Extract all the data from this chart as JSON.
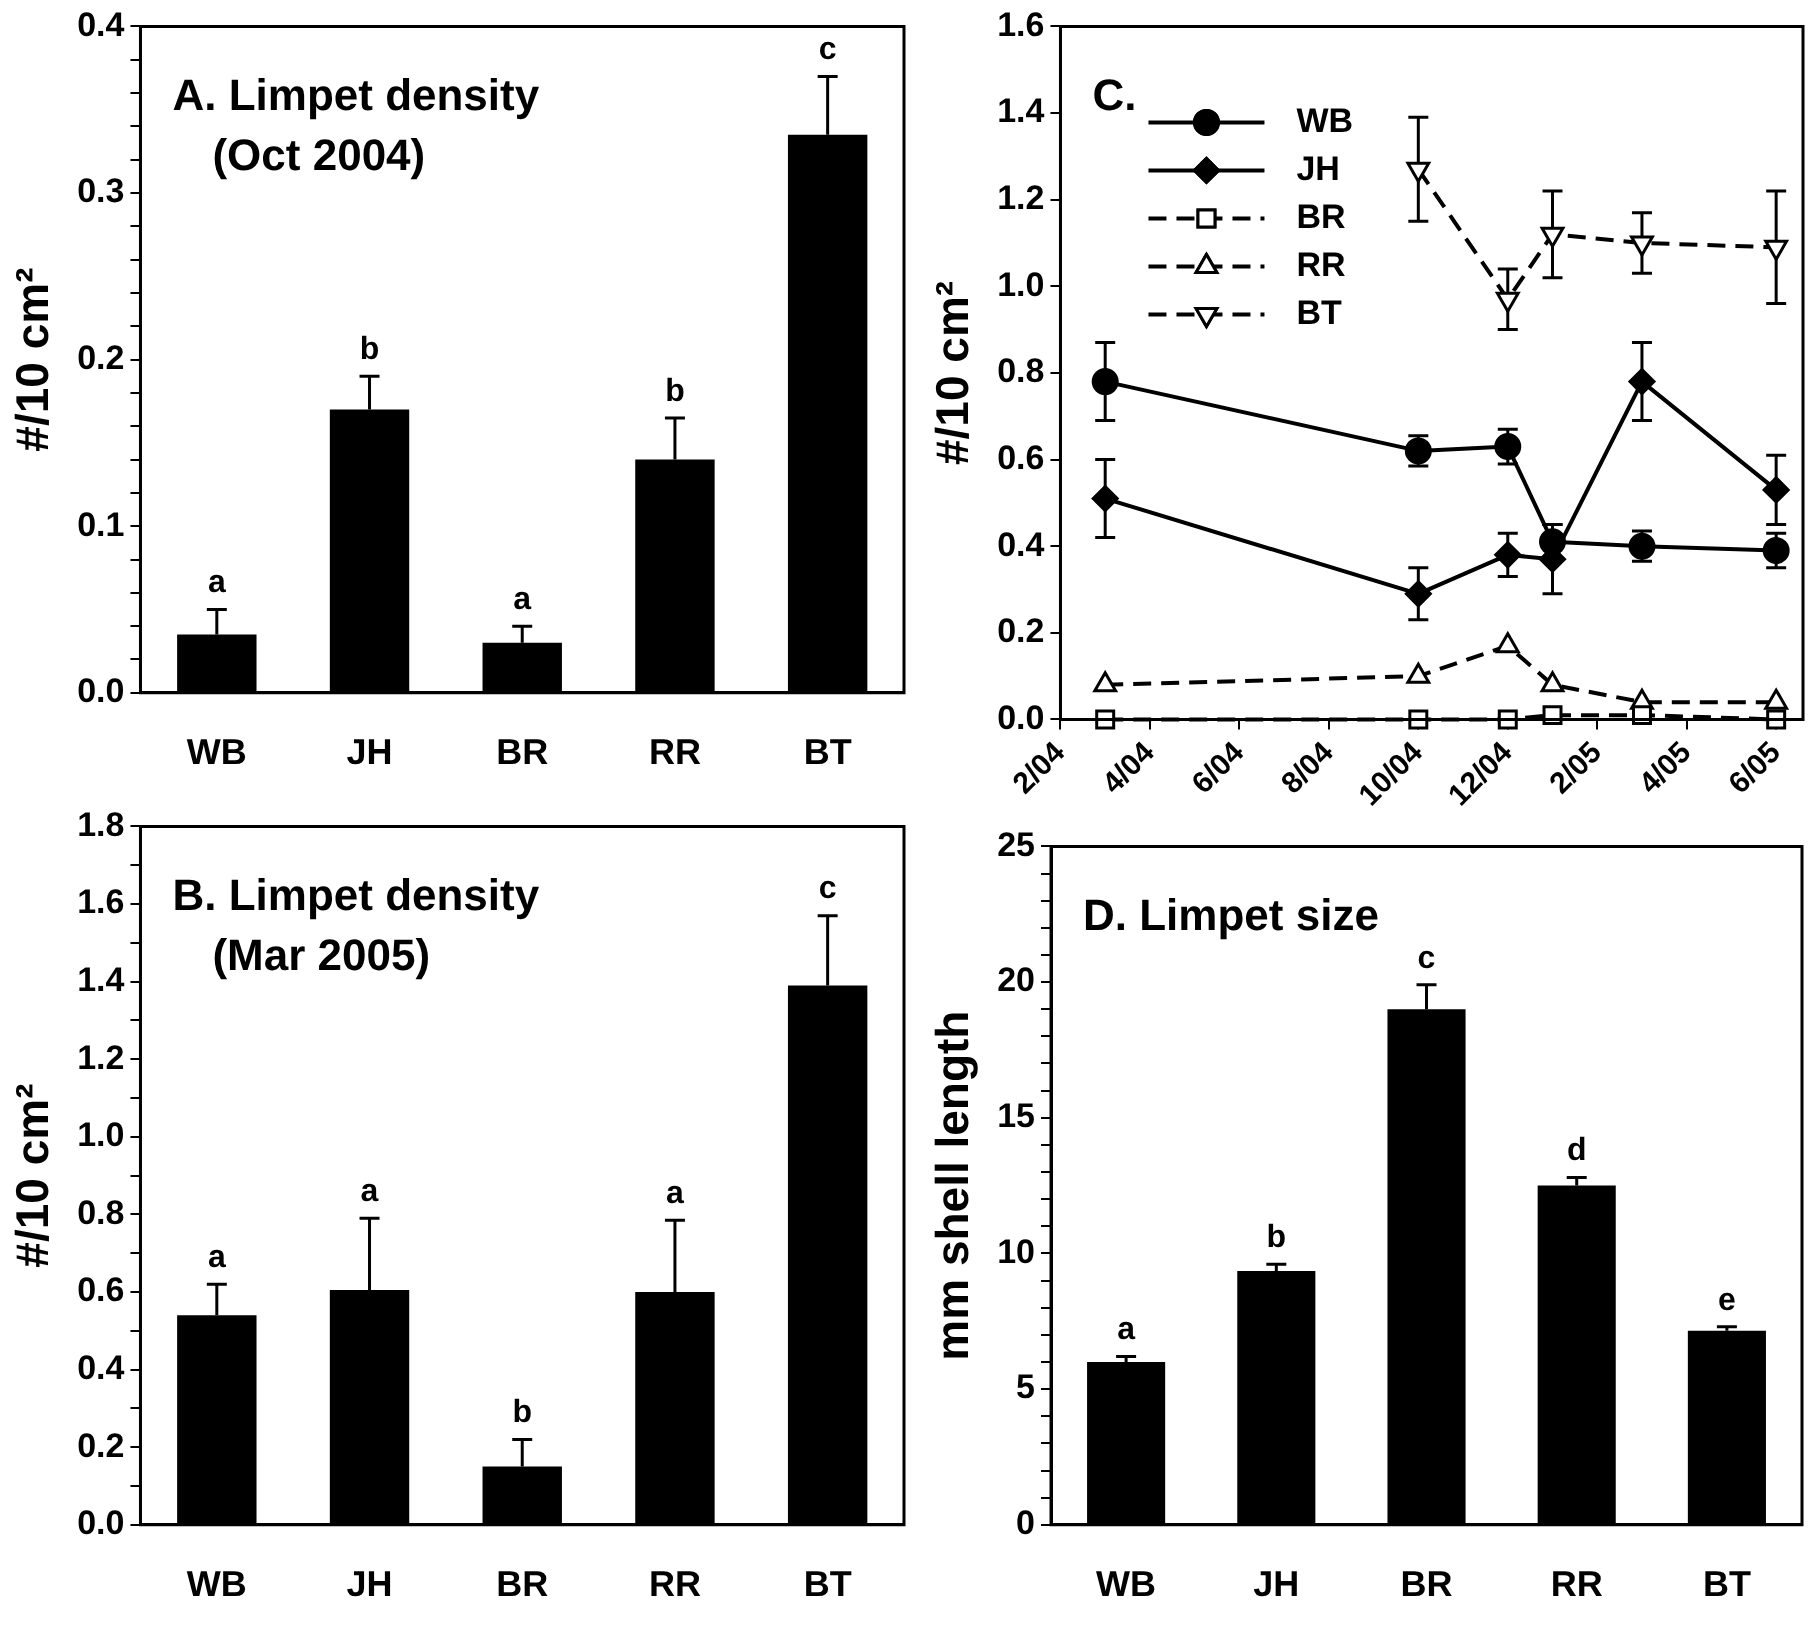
{
  "chart_data": [
    {
      "type": "bar",
      "title": "A. Limpet density",
      "subtitle": "(Oct 2004)",
      "ylabel": "#/10 cm²",
      "categories": [
        "WB",
        "JH",
        "BR",
        "RR",
        "BT"
      ],
      "color": "#000000",
      "values": [
        0.035,
        0.17,
        0.03,
        0.14,
        0.335
      ],
      "errors": [
        [
          0.035,
          0.05
        ],
        [
          0.17,
          0.19
        ],
        [
          0.03,
          0.04
        ],
        [
          0.14,
          0.165
        ],
        [
          0.335,
          0.37
        ]
      ],
      "ylim": [
        0,
        0.4
      ],
      "yticks": [
        {
          "value": 0,
          "label": "0.0"
        },
        {
          "value": 0.02,
          "label": null
        },
        {
          "value": 0.04,
          "label": null
        },
        {
          "value": 0.06,
          "label": null
        },
        {
          "value": 0.08,
          "label": null
        },
        {
          "value": 0.1,
          "label": "0.1"
        },
        {
          "value": 0.12,
          "label": null
        },
        {
          "value": 0.14,
          "label": null
        },
        {
          "value": 0.16,
          "label": null
        },
        {
          "value": 0.18,
          "label": null
        },
        {
          "value": 0.2,
          "label": "0.2"
        },
        {
          "value": 0.22,
          "label": null
        },
        {
          "value": 0.24,
          "label": null
        },
        {
          "value": 0.26,
          "label": null
        },
        {
          "value": 0.28,
          "label": null
        },
        {
          "value": 0.3,
          "label": "0.3"
        },
        {
          "value": 0.32,
          "label": null
        },
        {
          "value": 0.34,
          "label": null
        },
        {
          "value": 0.36,
          "label": null
        },
        {
          "value": 0.38,
          "label": null
        },
        {
          "value": 0.4,
          "label": "0.4"
        }
      ],
      "annotations": [
        {
          "text": "a",
          "x": "WB",
          "y": 0.05
        },
        {
          "text": "b",
          "x": "JH",
          "y": 0.19
        },
        {
          "text": "a",
          "x": "BR",
          "y": 0.04
        },
        {
          "text": "b",
          "x": "RR",
          "y": 0.165
        },
        {
          "text": "c",
          "x": "BT",
          "y": 0.37
        }
      ],
      "grid": false,
      "legend": false
    },
    {
      "type": "line",
      "title": "C.",
      "ylabel": "#/10 cm²",
      "x": [
        "2004-03",
        "2004-10",
        "2004-12",
        "2005-01",
        "2005-03",
        "2005-06"
      ],
      "series": [
        {
          "name": "WB",
          "color": "#000000",
          "marker": "circle",
          "line_style": "solid",
          "values": [
            0.78,
            0.62,
            0.63,
            0.41,
            0.4,
            0.39
          ],
          "errors": [
            0.09,
            0.035,
            0.04,
            0.04,
            0.035,
            0.04
          ]
        },
        {
          "name": "JH",
          "color": "#000000",
          "marker": "diamond",
          "line_style": "solid",
          "values": [
            0.51,
            0.29,
            0.38,
            0.37,
            0.78,
            0.53
          ],
          "errors": [
            0.09,
            0.06,
            0.05,
            0.08,
            0.09,
            0.08
          ]
        },
        {
          "name": "BR",
          "color": "#000000",
          "marker": "square",
          "line_style": "dashed",
          "values": [
            0,
            0,
            0,
            0.01,
            0.01,
            0
          ]
        },
        {
          "name": "RR",
          "color": "#000000",
          "marker": "triangle",
          "line_style": "dashed",
          "values": [
            0.08,
            0.1,
            0.17,
            0.08,
            0.04,
            0.04
          ]
        },
        {
          "name": "BT",
          "color": "#000000",
          "marker": "triangle-down",
          "line_style": "dashed",
          "values": [
            null,
            1.27,
            0.97,
            1.12,
            1.1,
            1.09
          ],
          "errors": [
            null,
            0.12,
            0.07,
            0.1,
            0.07,
            0.13
          ]
        }
      ],
      "xlim": [
        "2004-02",
        "2005-06-19"
      ],
      "xticks": [
        {
          "value": "2004-02",
          "label": "2/04"
        },
        {
          "value": "2004-04",
          "label": "4/04"
        },
        {
          "value": "2004-06",
          "label": "6/04"
        },
        {
          "value": "2004-08",
          "label": "8/04"
        },
        {
          "value": "2004-10",
          "label": "10/04"
        },
        {
          "value": "2004-12",
          "label": "12/04"
        },
        {
          "value": "2005-02",
          "label": "2/05"
        },
        {
          "value": "2005-04",
          "label": "4/05"
        },
        {
          "value": "2005-06",
          "label": "6/05"
        }
      ],
      "ylim": [
        0,
        1.6
      ],
      "yticks": [
        {
          "value": 0,
          "label": "0.0"
        },
        {
          "value": 0.2,
          "label": "0.2"
        },
        {
          "value": 0.4,
          "label": "0.4"
        },
        {
          "value": 0.6,
          "label": "0.6"
        },
        {
          "value": 0.8,
          "label": "0.8"
        },
        {
          "value": 1,
          "label": "1.0"
        },
        {
          "value": 1.2,
          "label": "1.2"
        },
        {
          "value": 1.4,
          "label": "1.4"
        },
        {
          "value": 1.6,
          "label": "1.6"
        }
      ],
      "grid": false,
      "legend": "top left"
    },
    {
      "type": "bar",
      "title": "B. Limpet density",
      "subtitle": "(Mar 2005)",
      "ylabel": "#/10 cm²",
      "categories": [
        "WB",
        "JH",
        "BR",
        "RR",
        "BT"
      ],
      "color": "#000000",
      "values": [
        0.54,
        0.605,
        0.15,
        0.6,
        1.39
      ],
      "errors": [
        [
          0.54,
          0.62
        ],
        [
          0.605,
          0.79
        ],
        [
          0.15,
          0.22
        ],
        [
          0.6,
          0.785
        ],
        [
          1.39,
          1.57
        ]
      ],
      "ylim": [
        0,
        1.8
      ],
      "yticks": [
        {
          "value": 0,
          "label": "0.0"
        },
        {
          "value": 0.1,
          "label": null
        },
        {
          "value": 0.2,
          "label": "0.2"
        },
        {
          "value": 0.3,
          "label": null
        },
        {
          "value": 0.4,
          "label": "0.4"
        },
        {
          "value": 0.5,
          "label": null
        },
        {
          "value": 0.6,
          "label": "0.6"
        },
        {
          "value": 0.7,
          "label": null
        },
        {
          "value": 0.8,
          "label": "0.8"
        },
        {
          "value": 0.9,
          "label": null
        },
        {
          "value": 1,
          "label": "1.0"
        },
        {
          "value": 1.1,
          "label": null
        },
        {
          "value": 1.2,
          "label": "1.2"
        },
        {
          "value": 1.3,
          "label": null
        },
        {
          "value": 1.4,
          "label": "1.4"
        },
        {
          "value": 1.5,
          "label": null
        },
        {
          "value": 1.6,
          "label": "1.6"
        },
        {
          "value": 1.7,
          "label": null
        },
        {
          "value": 1.8,
          "label": "1.8"
        }
      ],
      "annotations": [
        {
          "text": "a",
          "x": "WB",
          "y": 0.62
        },
        {
          "text": "a",
          "x": "JH",
          "y": 0.79
        },
        {
          "text": "b",
          "x": "BR",
          "y": 0.22
        },
        {
          "text": "a",
          "x": "RR",
          "y": 0.785
        },
        {
          "text": "c",
          "x": "BT",
          "y": 1.57
        }
      ],
      "grid": false,
      "legend": false
    },
    {
      "type": "bar",
      "title": "D. Limpet size",
      "ylabel": "mm shell length",
      "categories": [
        "WB",
        "JH",
        "BR",
        "RR",
        "BT"
      ],
      "color": "#000000",
      "values": [
        6.0,
        9.35,
        19.0,
        12.5,
        7.15
      ],
      "errors": [
        [
          6.0,
          6.2
        ],
        [
          9.35,
          9.6
        ],
        [
          19.0,
          19.9
        ],
        [
          12.5,
          12.8
        ],
        [
          7.15,
          7.3
        ]
      ],
      "ylim": [
        0,
        25
      ],
      "yticks": [
        0,
        {
          "value": 1,
          "label": null
        },
        {
          "value": 2,
          "label": null
        },
        {
          "value": 3,
          "label": null
        },
        {
          "value": 4,
          "label": null
        },
        5,
        {
          "value": 6,
          "label": null
        },
        {
          "value": 7,
          "label": null
        },
        {
          "value": 8,
          "label": null
        },
        {
          "value": 9,
          "label": null
        },
        10,
        {
          "value": 11,
          "label": null
        },
        {
          "value": 12,
          "label": null
        },
        {
          "value": 13,
          "label": null
        },
        {
          "value": 14,
          "label": null
        },
        15,
        {
          "value": 16,
          "label": null
        },
        {
          "value": 17,
          "label": null
        },
        {
          "value": 18,
          "label": null
        },
        {
          "value": 19,
          "label": null
        },
        20,
        {
          "value": 21,
          "label": null
        },
        {
          "value": 22,
          "label": null
        },
        {
          "value": 23,
          "label": null
        },
        {
          "value": 24,
          "label": null
        },
        25
      ],
      "annotations": [
        {
          "text": "a",
          "x": "WB",
          "y": 6.2
        },
        {
          "text": "b",
          "x": "JH",
          "y": 9.6
        },
        {
          "text": "c",
          "x": "BR",
          "y": 19.9
        },
        {
          "text": "d",
          "x": "RR",
          "y": 12.8
        },
        {
          "text": "e",
          "x": "BT",
          "y": 7.3
        }
      ],
      "grid": false,
      "legend": false
    }
  ]
}
